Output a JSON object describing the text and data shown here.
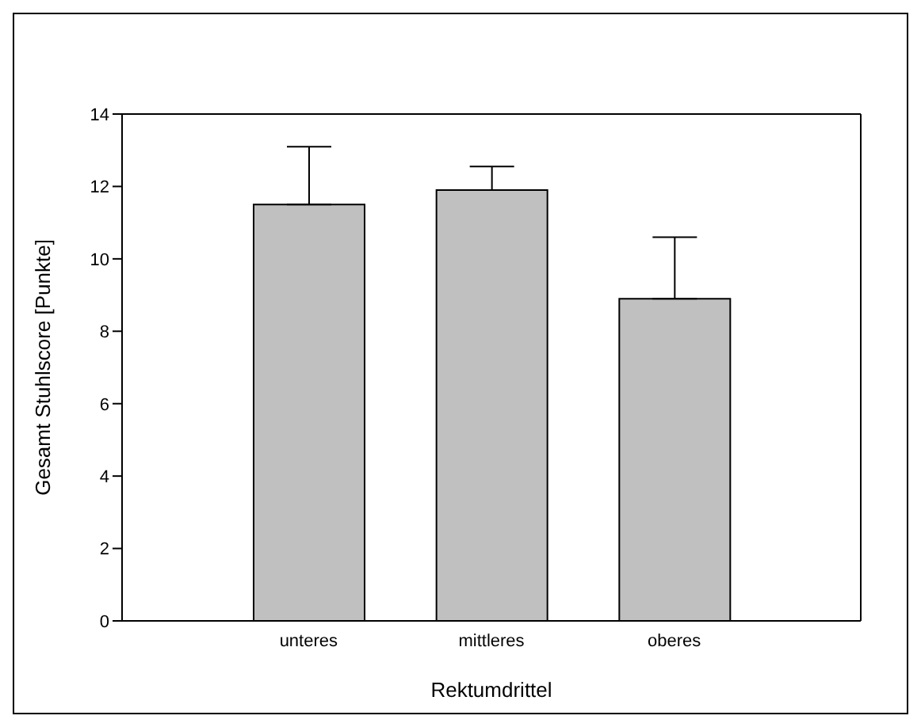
{
  "chart_data": {
    "type": "bar",
    "xlabel": "Rektumdrittel",
    "ylabel": "Gesamt Stuhlscore [Punkte]",
    "categories": [
      "unteres",
      "mittleres",
      "oberes"
    ],
    "values": [
      11.5,
      11.9,
      8.9
    ],
    "errors": [
      [
        11.5,
        13.1
      ],
      [
        11.9,
        12.55
      ],
      [
        8.9,
        10.6
      ]
    ],
    "color": "#c0c0c0",
    "ylim": [
      0,
      14
    ],
    "yticks": [
      0,
      2,
      4,
      6,
      8,
      10,
      12,
      14
    ],
    "grid": false,
    "legend": false
  }
}
